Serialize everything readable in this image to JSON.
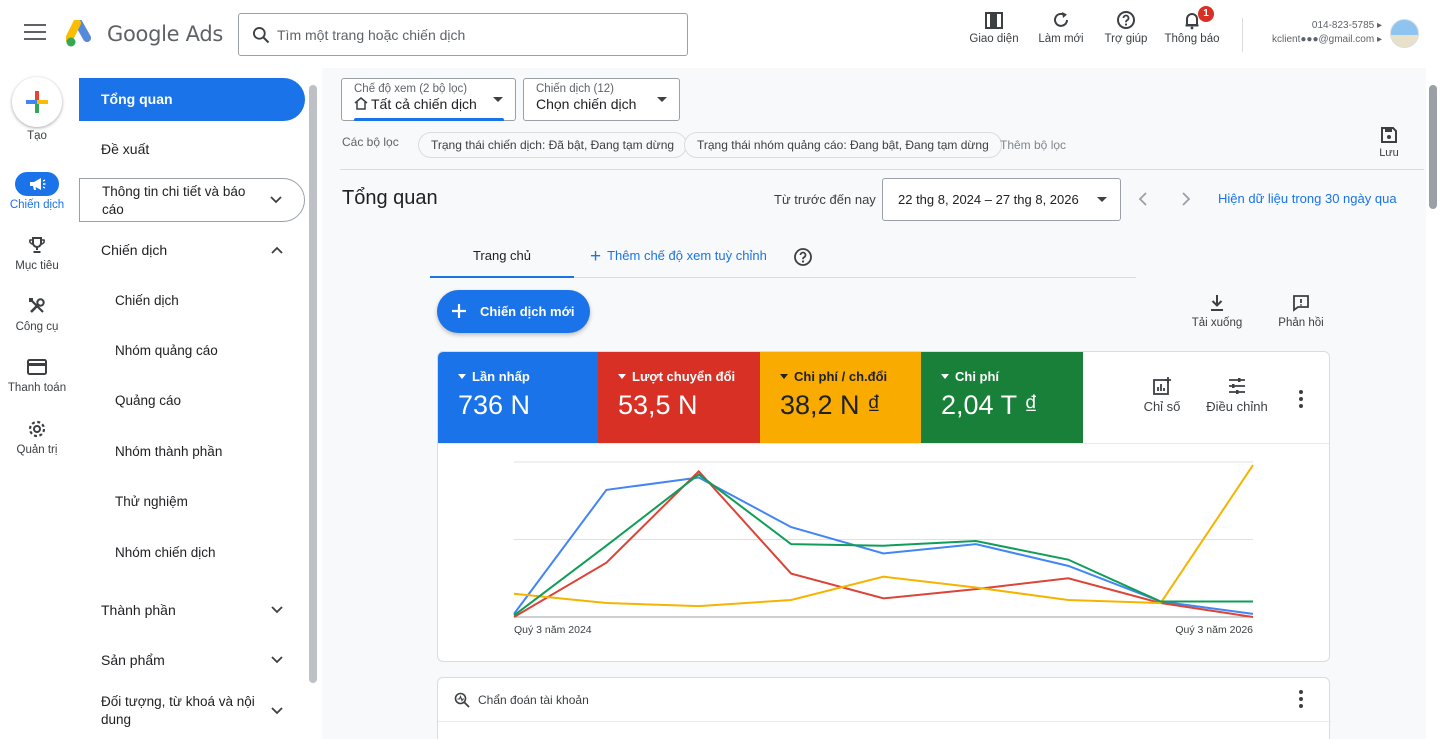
{
  "brand": {
    "name": "Google Ads"
  },
  "search": {
    "placeholder": "Tìm một trang hoặc chiến dịch"
  },
  "toolbar": {
    "appearance": "Giao diện",
    "refresh": "Làm mới",
    "help": "Trợ giúp",
    "notifications": "Thông báo",
    "notifications_count": "1"
  },
  "account": {
    "line1": "014-823-5785 ▸",
    "line2": "kclient●●●@gmail.com ▸"
  },
  "rail": {
    "create": "Tạo",
    "items": [
      "Chiến dịch",
      "Mục tiêu",
      "Công cụ",
      "Thanh toán",
      "Quản trị"
    ]
  },
  "nav": {
    "overview": "Tổng quan",
    "recommendations": "Đề xuất",
    "insights": "Thông tin chi tiết và báo cáo",
    "campaigns_group": "Chiến dịch",
    "campaign_items": [
      "Chiến dịch",
      "Nhóm quảng cáo",
      "Quảng cáo",
      "Nhóm thành phần",
      "Thử nghiệm",
      "Nhóm chiến dịch"
    ],
    "assets": "Thành phần",
    "products": "Sản phẩm",
    "audiences": "Đối tượng, từ khoá và nội dung"
  },
  "view_dd": {
    "label": "Chế độ xem (2 bộ lọc)",
    "value": "Tất cả chiến dịch"
  },
  "campaign_dd": {
    "label": "Chiến dịch (12)",
    "value": "Chọn chiến dịch"
  },
  "filters": {
    "label": "Các bộ lọc",
    "chips": [
      "Trạng thái chiến dịch: Đã bật, Đang tạm dừng",
      "Trạng thái nhóm quảng cáo: Đang bật, Đang tạm dừng"
    ],
    "add": "Thêm bộ lọc",
    "save": "Lưu"
  },
  "page": {
    "title": "Tổng quan"
  },
  "date": {
    "label": "Từ trước đến nay",
    "range": "22 thg 8, 2024 – 27 thg 8, 2026",
    "link": "Hiện dữ liệu trong 30 ngày qua"
  },
  "tabs": {
    "home": "Trang chủ",
    "add_view": "Thêm chế độ xem tuỳ chỉnh"
  },
  "actions": {
    "new_campaign": "Chiến dịch mới",
    "download": "Tải xuống",
    "feedback": "Phản hồi"
  },
  "metrics": [
    {
      "label": "Lần nhấp",
      "value": "736 N",
      "color": "#1a73e8"
    },
    {
      "label": "Lượt chuyển đổi",
      "value": "53,5 N",
      "color": "#d93025"
    },
    {
      "label": "Chi phí / ch.đổi",
      "value": "38,2 N ₫",
      "color": "#f9ab00"
    },
    {
      "label": "Chi phí",
      "value": "2,04 T ₫",
      "color": "#188038"
    }
  ],
  "metric_tools": {
    "metrics": "Chỉ số",
    "adjust": "Điều chỉnh"
  },
  "chart_data": {
    "type": "line",
    "x": [
      "Quý 3 năm 2024",
      "",
      "",
      "",
      "",
      "",
      "",
      "",
      "Quý 3 năm 2026"
    ],
    "x_tick_labels": [
      "Quý 3 năm 2024",
      "Quý 3 năm 2026"
    ],
    "series": [
      {
        "name": "Lần nhấp",
        "color": "#4285f4",
        "values": [
          2,
          82,
          90,
          58,
          41,
          47,
          33,
          10,
          2
        ]
      },
      {
        "name": "Lượt chuyển đổi",
        "color": "#db4437",
        "values": [
          0,
          35,
          94,
          28,
          12,
          18,
          25,
          9,
          0
        ]
      },
      {
        "name": "Chi phí / ch.đổi",
        "color": "#f4b400",
        "values": [
          15,
          9,
          7,
          11,
          26,
          19,
          11,
          9,
          98
        ]
      },
      {
        "name": "Chi phí",
        "color": "#0f9d58",
        "values": [
          1,
          46,
          92,
          47,
          46,
          49,
          37,
          10,
          10
        ]
      }
    ],
    "ylim": [
      0,
      100
    ],
    "grid": true,
    "legend": "none"
  },
  "diagnostics": {
    "title": "Chẩn đoán tài khoản"
  }
}
